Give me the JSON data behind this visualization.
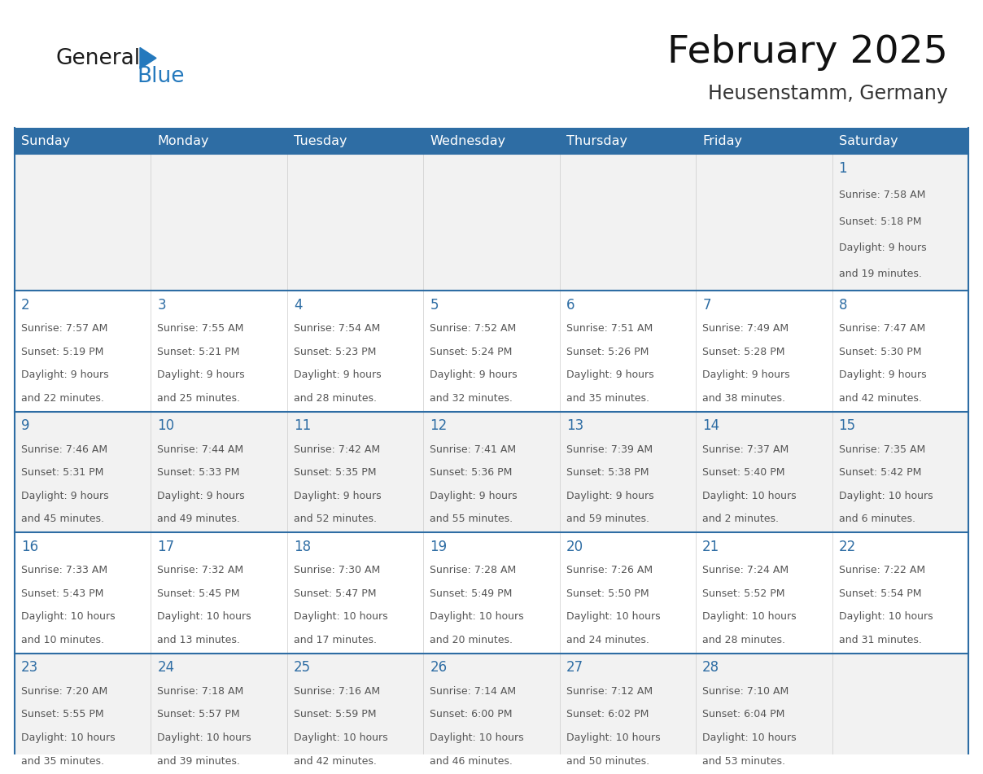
{
  "title": "February 2025",
  "subtitle": "Heusenstamm, Germany",
  "header_bg": "#2E6DA4",
  "header_text_color": "#FFFFFF",
  "day_names": [
    "Sunday",
    "Monday",
    "Tuesday",
    "Wednesday",
    "Thursday",
    "Friday",
    "Saturday"
  ],
  "cell_bg_odd": "#F2F2F2",
  "cell_bg_even": "#FFFFFF",
  "day_number_color": "#2E6DA4",
  "info_text_color": "#555555",
  "border_color": "#2E6DA4",
  "logo_general_color": "#1A1A1A",
  "logo_blue_color": "#2479BD",
  "days": [
    {
      "date": 1,
      "row": 0,
      "col": 6,
      "sunrise": "7:58 AM",
      "sunset": "5:18 PM",
      "daylight": "9 hours and 19 minutes"
    },
    {
      "date": 2,
      "row": 1,
      "col": 0,
      "sunrise": "7:57 AM",
      "sunset": "5:19 PM",
      "daylight": "9 hours and 22 minutes"
    },
    {
      "date": 3,
      "row": 1,
      "col": 1,
      "sunrise": "7:55 AM",
      "sunset": "5:21 PM",
      "daylight": "9 hours and 25 minutes"
    },
    {
      "date": 4,
      "row": 1,
      "col": 2,
      "sunrise": "7:54 AM",
      "sunset": "5:23 PM",
      "daylight": "9 hours and 28 minutes"
    },
    {
      "date": 5,
      "row": 1,
      "col": 3,
      "sunrise": "7:52 AM",
      "sunset": "5:24 PM",
      "daylight": "9 hours and 32 minutes"
    },
    {
      "date": 6,
      "row": 1,
      "col": 4,
      "sunrise": "7:51 AM",
      "sunset": "5:26 PM",
      "daylight": "9 hours and 35 minutes"
    },
    {
      "date": 7,
      "row": 1,
      "col": 5,
      "sunrise": "7:49 AM",
      "sunset": "5:28 PM",
      "daylight": "9 hours and 38 minutes"
    },
    {
      "date": 8,
      "row": 1,
      "col": 6,
      "sunrise": "7:47 AM",
      "sunset": "5:30 PM",
      "daylight": "9 hours and 42 minutes"
    },
    {
      "date": 9,
      "row": 2,
      "col": 0,
      "sunrise": "7:46 AM",
      "sunset": "5:31 PM",
      "daylight": "9 hours and 45 minutes"
    },
    {
      "date": 10,
      "row": 2,
      "col": 1,
      "sunrise": "7:44 AM",
      "sunset": "5:33 PM",
      "daylight": "9 hours and 49 minutes"
    },
    {
      "date": 11,
      "row": 2,
      "col": 2,
      "sunrise": "7:42 AM",
      "sunset": "5:35 PM",
      "daylight": "9 hours and 52 minutes"
    },
    {
      "date": 12,
      "row": 2,
      "col": 3,
      "sunrise": "7:41 AM",
      "sunset": "5:36 PM",
      "daylight": "9 hours and 55 minutes"
    },
    {
      "date": 13,
      "row": 2,
      "col": 4,
      "sunrise": "7:39 AM",
      "sunset": "5:38 PM",
      "daylight": "9 hours and 59 minutes"
    },
    {
      "date": 14,
      "row": 2,
      "col": 5,
      "sunrise": "7:37 AM",
      "sunset": "5:40 PM",
      "daylight": "10 hours and 2 minutes"
    },
    {
      "date": 15,
      "row": 2,
      "col": 6,
      "sunrise": "7:35 AM",
      "sunset": "5:42 PM",
      "daylight": "10 hours and 6 minutes"
    },
    {
      "date": 16,
      "row": 3,
      "col": 0,
      "sunrise": "7:33 AM",
      "sunset": "5:43 PM",
      "daylight": "10 hours and 10 minutes"
    },
    {
      "date": 17,
      "row": 3,
      "col": 1,
      "sunrise": "7:32 AM",
      "sunset": "5:45 PM",
      "daylight": "10 hours and 13 minutes"
    },
    {
      "date": 18,
      "row": 3,
      "col": 2,
      "sunrise": "7:30 AM",
      "sunset": "5:47 PM",
      "daylight": "10 hours and 17 minutes"
    },
    {
      "date": 19,
      "row": 3,
      "col": 3,
      "sunrise": "7:28 AM",
      "sunset": "5:49 PM",
      "daylight": "10 hours and 20 minutes"
    },
    {
      "date": 20,
      "row": 3,
      "col": 4,
      "sunrise": "7:26 AM",
      "sunset": "5:50 PM",
      "daylight": "10 hours and 24 minutes"
    },
    {
      "date": 21,
      "row": 3,
      "col": 5,
      "sunrise": "7:24 AM",
      "sunset": "5:52 PM",
      "daylight": "10 hours and 28 minutes"
    },
    {
      "date": 22,
      "row": 3,
      "col": 6,
      "sunrise": "7:22 AM",
      "sunset": "5:54 PM",
      "daylight": "10 hours and 31 minutes"
    },
    {
      "date": 23,
      "row": 4,
      "col": 0,
      "sunrise": "7:20 AM",
      "sunset": "5:55 PM",
      "daylight": "10 hours and 35 minutes"
    },
    {
      "date": 24,
      "row": 4,
      "col": 1,
      "sunrise": "7:18 AM",
      "sunset": "5:57 PM",
      "daylight": "10 hours and 39 minutes"
    },
    {
      "date": 25,
      "row": 4,
      "col": 2,
      "sunrise": "7:16 AM",
      "sunset": "5:59 PM",
      "daylight": "10 hours and 42 minutes"
    },
    {
      "date": 26,
      "row": 4,
      "col": 3,
      "sunrise": "7:14 AM",
      "sunset": "6:00 PM",
      "daylight": "10 hours and 46 minutes"
    },
    {
      "date": 27,
      "row": 4,
      "col": 4,
      "sunrise": "7:12 AM",
      "sunset": "6:02 PM",
      "daylight": "10 hours and 50 minutes"
    },
    {
      "date": 28,
      "row": 4,
      "col": 5,
      "sunrise": "7:10 AM",
      "sunset": "6:04 PM",
      "daylight": "10 hours and 53 minutes"
    }
  ],
  "num_rows": 5,
  "num_cols": 7
}
